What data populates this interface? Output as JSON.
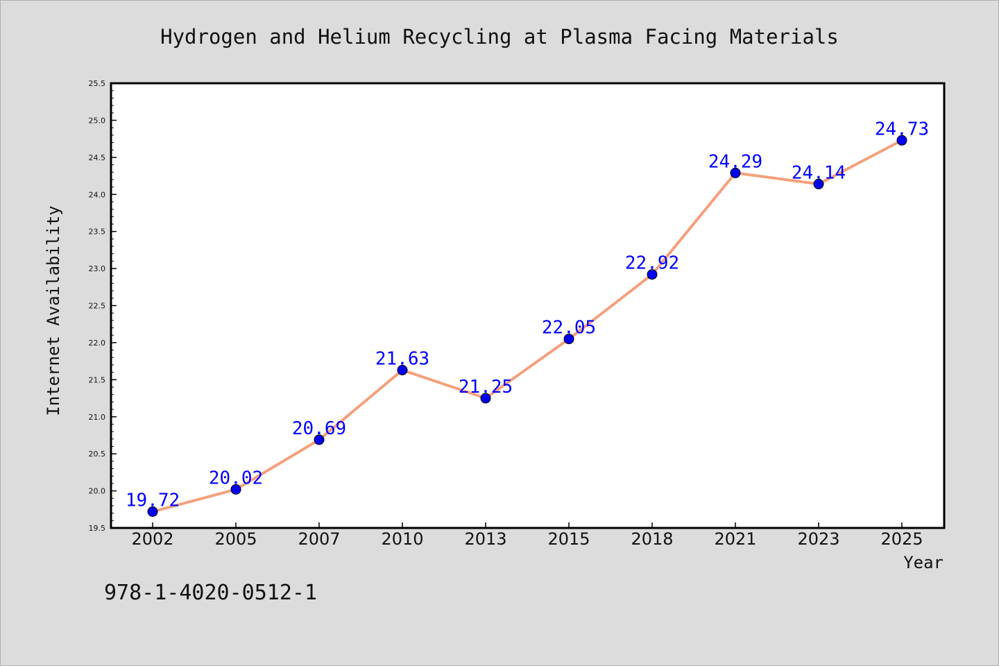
{
  "chart_data": {
    "type": "line",
    "title": "Hydrogen and Helium Recycling at Plasma Facing Materials",
    "xlabel": "Year",
    "ylabel": "Internet Availability",
    "categories": [
      "2002",
      "2005",
      "2007",
      "2010",
      "2013",
      "2015",
      "2018",
      "2021",
      "2023",
      "2025"
    ],
    "series": [
      {
        "values": [
          19.72,
          20.02,
          20.69,
          21.63,
          21.25,
          22.05,
          22.92,
          24.29,
          24.14,
          24.73
        ]
      }
    ],
    "data_labels": [
      "19.72",
      "20.02",
      "20.69",
      "21.63",
      "21.25",
      "22.05",
      "22.92",
      "24.29",
      "24.14",
      "24.73"
    ],
    "ylim": [
      19.5,
      25.5
    ],
    "yticks": [
      "19.5",
      "20.0",
      "20.5",
      "21.0",
      "21.5",
      "22.0",
      "22.5",
      "23.0",
      "23.5",
      "24.0",
      "24.5",
      "25.0",
      "25.5"
    ],
    "grid": false,
    "legend": "none",
    "colors": {
      "line": "#f4a07e",
      "marker": "#0000ee",
      "label": "#0000ff",
      "background": "#dcdcdc",
      "plot_area": "#ffffff"
    }
  },
  "footer_text": "978-1-4020-0512-1"
}
